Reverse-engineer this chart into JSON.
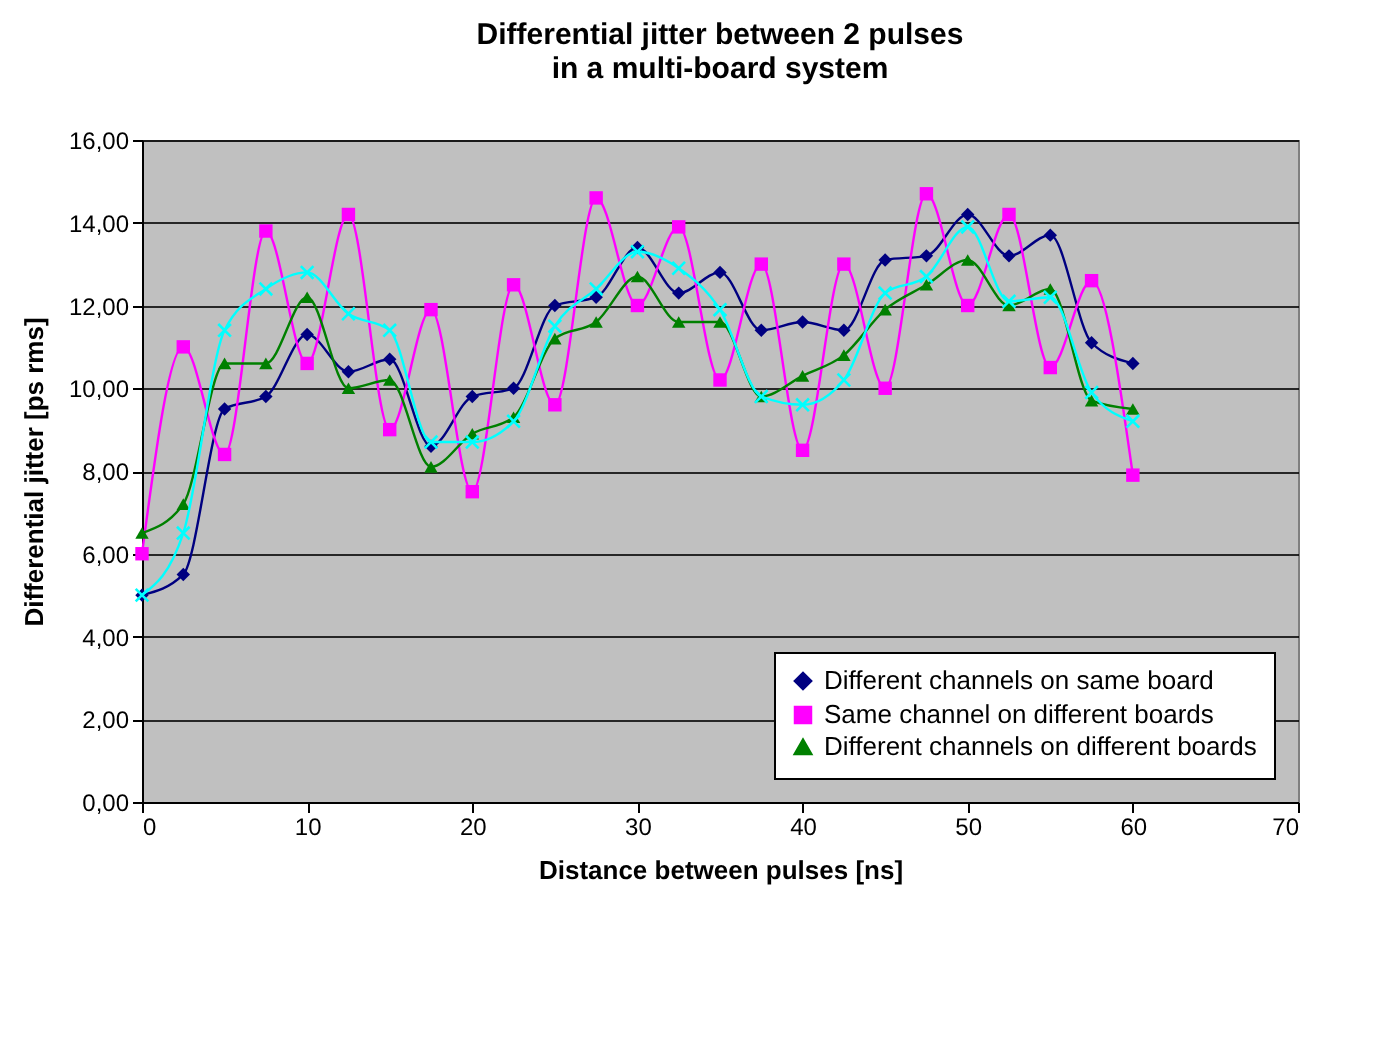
{
  "chart_data": {
    "type": "line",
    "title": "Differential jitter between 2 pulses\nin a multi-board system",
    "xlabel": "Distance between pulses [ns]",
    "ylabel": "Differential jitter [ps rms]",
    "x": [
      0,
      2.5,
      5,
      7.5,
      10,
      12.5,
      15,
      17.5,
      20,
      22.5,
      25,
      27.5,
      30,
      32.5,
      35,
      37.5,
      40,
      42.5,
      45,
      47.5,
      50,
      52.5,
      55,
      57.5,
      60
    ],
    "xlim": [
      0,
      70
    ],
    "xticks": [
      0,
      10,
      20,
      30,
      40,
      50,
      60,
      70
    ],
    "ylim": [
      0,
      16
    ],
    "yticks": [
      {
        "value": 0,
        "label": "0,00"
      },
      {
        "value": 2,
        "label": "2,00"
      },
      {
        "value": 4,
        "label": "4,00"
      },
      {
        "value": 6,
        "label": "6,00"
      },
      {
        "value": 8,
        "label": "8,00"
      },
      {
        "value": 10,
        "label": "10,00"
      },
      {
        "value": 12,
        "label": "12,00"
      },
      {
        "value": 14,
        "label": "14,00"
      },
      {
        "value": 16,
        "label": "16,00"
      }
    ],
    "grid": "y",
    "legend": "bottom right",
    "series": [
      {
        "name": "Different channels on same board",
        "color": "#000080",
        "marker": "diamond",
        "values": [
          5.0,
          5.5,
          9.5,
          9.8,
          11.3,
          10.4,
          10.7,
          8.6,
          9.8,
          10.0,
          12.0,
          12.2,
          13.4,
          12.3,
          12.8,
          11.4,
          11.6,
          11.4,
          13.1,
          13.2,
          14.2,
          13.2,
          13.7,
          11.1,
          10.6
        ]
      },
      {
        "name": "Same channel on different boards",
        "color": "#ff00ff",
        "marker": "square",
        "values": [
          6.0,
          11.0,
          8.4,
          13.8,
          10.6,
          14.2,
          9.0,
          11.9,
          7.5,
          12.5,
          9.6,
          14.6,
          12.0,
          13.9,
          10.2,
          13.0,
          8.5,
          13.0,
          10.0,
          14.7,
          12.0,
          14.2,
          10.5,
          12.6,
          7.9
        ]
      },
      {
        "name": "Different channels on different boards",
        "color": "#008000",
        "marker": "triangle",
        "values": [
          6.5,
          7.2,
          10.6,
          10.6,
          12.2,
          10.0,
          10.2,
          8.1,
          8.9,
          9.3,
          11.2,
          11.6,
          12.7,
          11.6,
          11.6,
          9.8,
          10.3,
          10.8,
          11.9,
          12.5,
          13.1,
          12.0,
          12.4,
          9.7,
          9.5
        ]
      },
      {
        "color": "#00ffff",
        "marker": "cross",
        "values": [
          5.0,
          6.5,
          11.4,
          12.4,
          12.8,
          11.8,
          11.4,
          8.7,
          8.7,
          9.2,
          11.5,
          12.4,
          13.3,
          12.9,
          11.9,
          9.8,
          9.6,
          10.2,
          12.3,
          12.7,
          13.9,
          12.1,
          12.2,
          9.9,
          9.2
        ]
      }
    ]
  }
}
